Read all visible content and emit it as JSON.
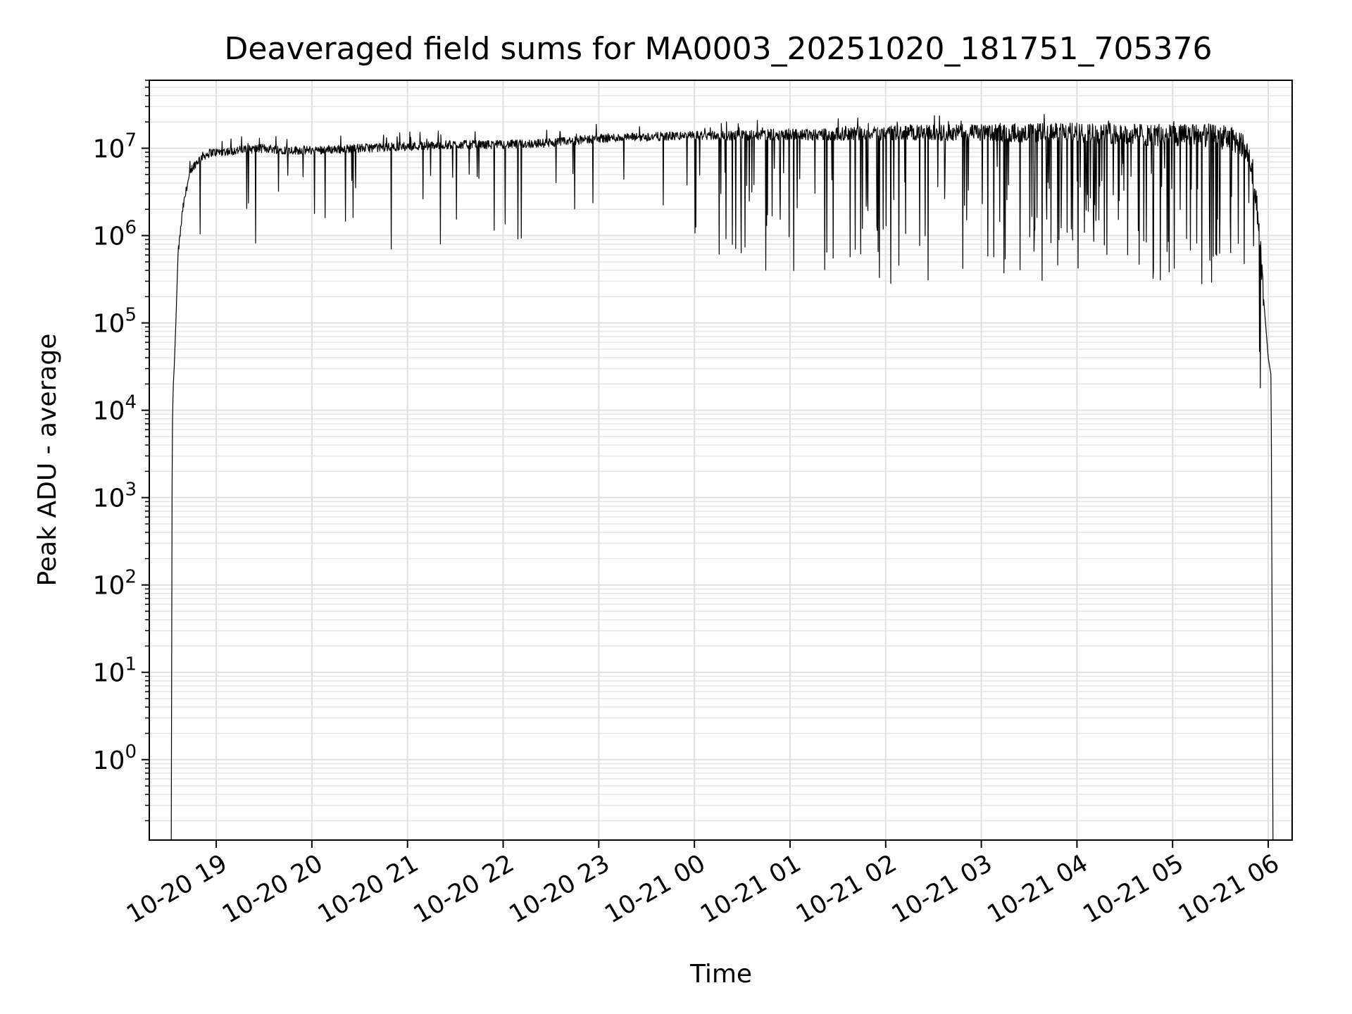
{
  "chart_data": {
    "type": "line",
    "title": "Deaveraged field sums for MA0003_20251020_181751_705376",
    "xlabel": "Time",
    "ylabel": "Peak ADU - average",
    "yscale": "log",
    "ylim": [
      0.12,
      60000000
    ],
    "xlim_hours_from_2025_10_20_1900": [
      -0.7,
      11.25
    ],
    "grid": true,
    "line_color": "#000000",
    "x_ticks": [
      {
        "label": "10-20 19",
        "hours": 0
      },
      {
        "label": "10-20 20",
        "hours": 1
      },
      {
        "label": "10-20 21",
        "hours": 2
      },
      {
        "label": "10-20 22",
        "hours": 3
      },
      {
        "label": "10-20 23",
        "hours": 4
      },
      {
        "label": "10-21 00",
        "hours": 5
      },
      {
        "label": "10-21 01",
        "hours": 6
      },
      {
        "label": "10-21 02",
        "hours": 7
      },
      {
        "label": "10-21 03",
        "hours": 8
      },
      {
        "label": "10-21 04",
        "hours": 9
      },
      {
        "label": "10-21 05",
        "hours": 10
      },
      {
        "label": "10-21 06",
        "hours": 11
      }
    ],
    "y_ticks": [
      {
        "base": "10",
        "exp": "0",
        "value": 1
      },
      {
        "base": "10",
        "exp": "1",
        "value": 10
      },
      {
        "base": "10",
        "exp": "2",
        "value": 100
      },
      {
        "base": "10",
        "exp": "3",
        "value": 1000
      },
      {
        "base": "10",
        "exp": "4",
        "value": 10000
      },
      {
        "base": "10",
        "exp": "5",
        "value": 100000
      },
      {
        "base": "10",
        "exp": "6",
        "value": 1000000
      },
      {
        "base": "10",
        "exp": "7",
        "value": 10000000
      }
    ],
    "series": [
      {
        "name": "field sum",
        "x_hours": [
          -0.47,
          -0.46,
          -0.45,
          -0.44,
          -0.42,
          -0.4,
          -0.35,
          -0.3,
          -0.25,
          -0.2,
          -0.15,
          -0.1,
          -0.05,
          0.0,
          0.25,
          0.5,
          0.75,
          1.0,
          1.5,
          2.0,
          2.5,
          3.0,
          3.5,
          4.0,
          4.5,
          5.0,
          5.5,
          6.0,
          6.5,
          7.0,
          7.5,
          8.0,
          8.5,
          9.0,
          9.5,
          10.0,
          10.3,
          10.5,
          10.7,
          10.8,
          10.9,
          10.95,
          11.0,
          11.03,
          11.05
        ],
        "y_envelope": [
          0.12,
          5000,
          18000,
          30000,
          120000,
          600000,
          2000000,
          4000000,
          6000000,
          7000000,
          8000000,
          8500000,
          9000000,
          9000000,
          9500000,
          10000000,
          9500000,
          9500000,
          10000000,
          10500000,
          11000000,
          11000000,
          11500000,
          13000000,
          13500000,
          14000000,
          14000000,
          14500000,
          14500000,
          15000000,
          15000000,
          15000000,
          15000000,
          15000000,
          14500000,
          14000000,
          14000000,
          13500000,
          12000000,
          8000000,
          1500000,
          200000,
          40000,
          25000,
          0.12
        ]
      }
    ]
  }
}
